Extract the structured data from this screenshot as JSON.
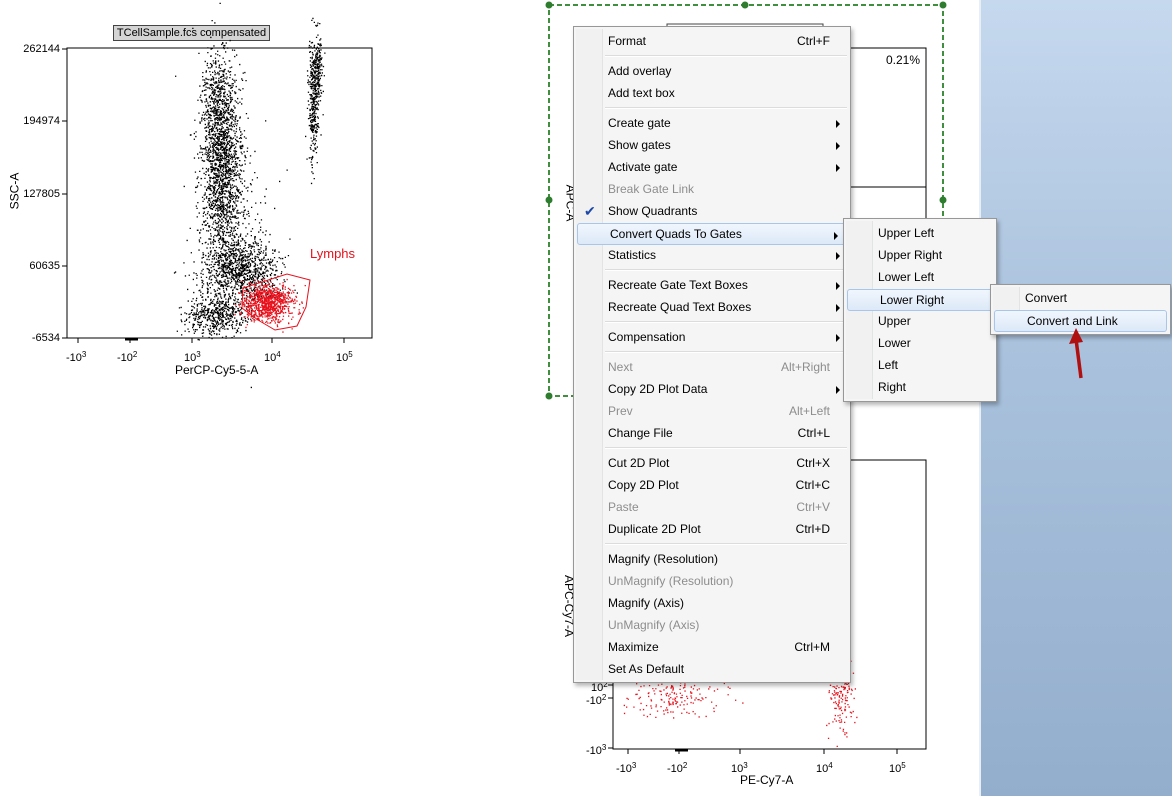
{
  "plot1": {
    "title_tag": "TCellSample.fcs compensated",
    "y_axis_label": "SSC-A",
    "x_axis_label": "PerCP-Cy5-5-A",
    "y_ticks": [
      "262144",
      "194974",
      "127805",
      "60635",
      "-6534"
    ],
    "x_ticks": [
      {
        "base": "-10",
        "exp": "3"
      },
      {
        "base": "-10",
        "exp": "2"
      },
      {
        "base": "10",
        "exp": "3"
      },
      {
        "base": "10",
        "exp": "4"
      },
      {
        "base": "10",
        "exp": "5"
      }
    ],
    "gate_label": "Lymphs",
    "gate_color": "#e8101b"
  },
  "plot2": {
    "quadrant_percent": "0.21%",
    "y_axis_label": "APC-A"
  },
  "plot3": {
    "y_axis_label": "APC-Cy7-A",
    "x_axis_label": "PE-Cy7-A",
    "y_ticks": [
      {
        "base": "10",
        "exp": "2"
      },
      {
        "base": "-10",
        "exp": "2"
      },
      {
        "base": "-10",
        "exp": "3"
      }
    ],
    "x_ticks": [
      {
        "base": "-10",
        "exp": "3"
      },
      {
        "base": "-10",
        "exp": "2"
      },
      {
        "base": "10",
        "exp": "3"
      },
      {
        "base": "10",
        "exp": "4"
      },
      {
        "base": "10",
        "exp": "5"
      }
    ]
  },
  "context_menu": {
    "items": [
      {
        "label": "Format",
        "shortcut": "Ctrl+F"
      },
      {
        "label": "Add overlay"
      },
      {
        "label": "Add text box"
      },
      {
        "label": "Create gate",
        "submenu": true
      },
      {
        "label": "Show gates",
        "submenu": true
      },
      {
        "label": "Activate gate",
        "submenu": true
      },
      {
        "label": "Break Gate Link",
        "disabled": true
      },
      {
        "label": "Show Quadrants",
        "checked": true
      },
      {
        "label": "Convert Quads To Gates",
        "submenu": true,
        "highlighted": true
      },
      {
        "label": "Statistics",
        "submenu": true
      },
      {
        "label": "Recreate Gate Text Boxes",
        "submenu": true
      },
      {
        "label": "Recreate Quad Text Boxes",
        "submenu": true
      },
      {
        "label": "Compensation",
        "submenu": true
      },
      {
        "label": "Next",
        "shortcut": "Alt+Right",
        "disabled": true
      },
      {
        "label": "Copy 2D Plot Data",
        "submenu": true
      },
      {
        "label": "Prev",
        "shortcut": "Alt+Left",
        "disabled": true
      },
      {
        "label": "Change File",
        "shortcut": "Ctrl+L"
      },
      {
        "label": "Cut 2D Plot",
        "shortcut": "Ctrl+X"
      },
      {
        "label": "Copy 2D Plot",
        "shortcut": "Ctrl+C"
      },
      {
        "label": "Paste",
        "shortcut": "Ctrl+V",
        "disabled": true
      },
      {
        "label": "Duplicate 2D Plot",
        "shortcut": "Ctrl+D"
      },
      {
        "label": "Magnify (Resolution)"
      },
      {
        "label": "UnMagnify (Resolution)",
        "disabled": true
      },
      {
        "label": "Magnify (Axis)"
      },
      {
        "label": "UnMagnify (Axis)",
        "disabled": true
      },
      {
        "label": "Maximize",
        "shortcut": "Ctrl+M"
      },
      {
        "label": "Set As Default"
      }
    ]
  },
  "quads_submenu": {
    "items": [
      {
        "label": "Upper Left"
      },
      {
        "label": "Upper Right"
      },
      {
        "label": "Lower Left"
      },
      {
        "label": "Lower Right",
        "highlighted": true
      },
      {
        "label": "Upper"
      },
      {
        "label": "Lower"
      },
      {
        "label": "Left"
      },
      {
        "label": "Right"
      }
    ]
  },
  "lower_right_submenu": {
    "items": [
      {
        "label": "Convert"
      },
      {
        "label": "Convert and Link",
        "highlighted": true
      }
    ]
  },
  "annotation": {
    "arrow_color": "#b01010"
  }
}
